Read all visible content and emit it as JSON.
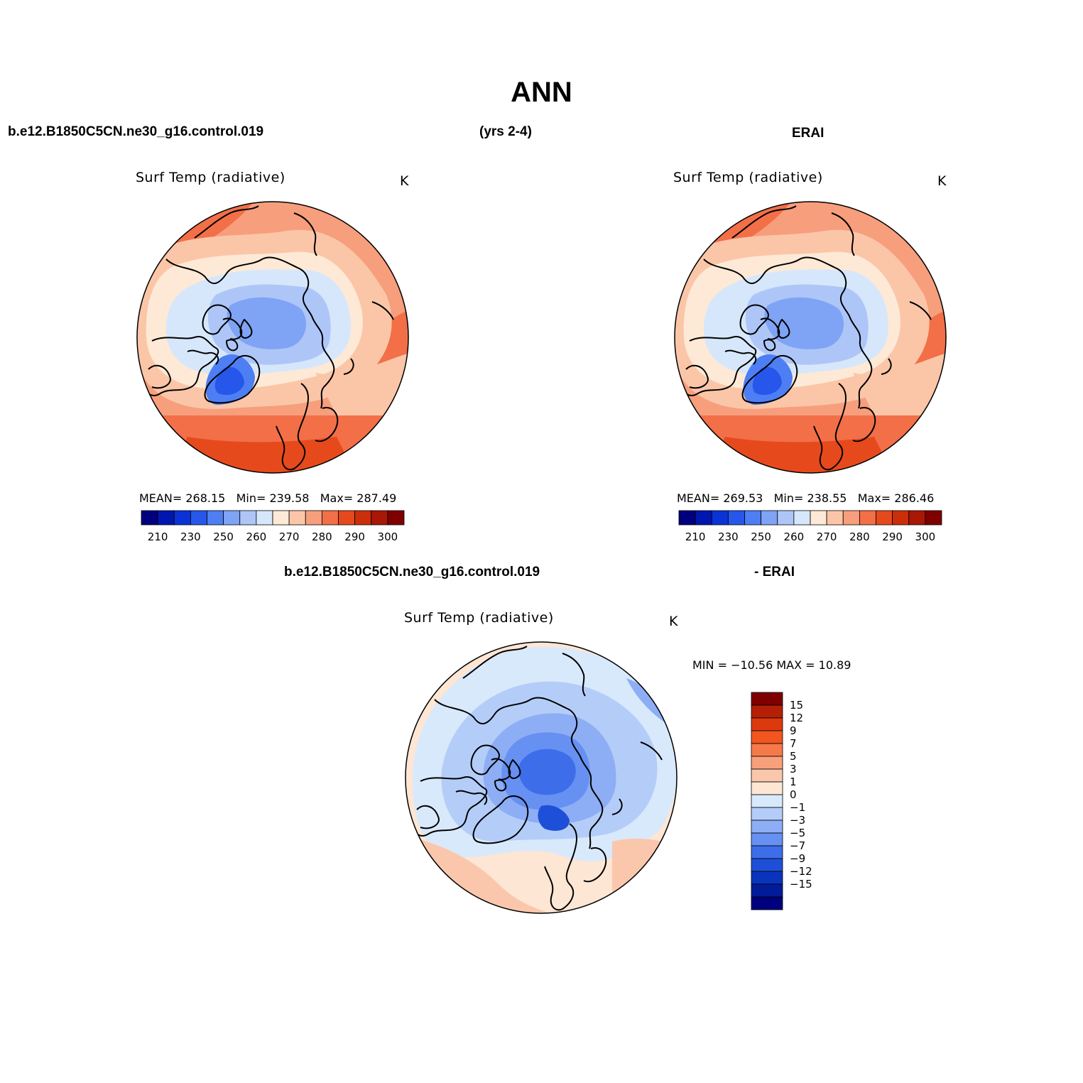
{
  "figure": {
    "title": "ANN",
    "header_left": "b.e12.B1850C5CN.ne30_g16.control.019",
    "header_center": "(yrs 2-4)",
    "header_right": "ERAI",
    "diff_header_left": "b.e12.B1850C5CN.ne30_g16.control.019",
    "diff_header_right": "- ERAI"
  },
  "panels": {
    "model": {
      "title": "Surf Temp (radiative)",
      "unit": "K",
      "mean_label": "MEAN=",
      "mean": "268.15",
      "min_label": "Min=",
      "min": "239.58",
      "max_label": "Max=",
      "max": "287.49"
    },
    "obs": {
      "title": "Surf Temp (radiative)",
      "unit": "K",
      "mean_label": "MEAN=",
      "mean": "269.53",
      "min_label": "Min=",
      "min": "238.55",
      "max_label": "Max=",
      "max": "286.46"
    },
    "diff": {
      "title": "Surf Temp (radiative)",
      "unit": "K",
      "minmax_text": "MIN = −10.56 MAX =   10.89"
    }
  },
  "colorbars": {
    "abs": {
      "colors": [
        "#00007f",
        "#0016b0",
        "#0a33d6",
        "#2756ea",
        "#4d7ef4",
        "#7fa3f5",
        "#aec6f7",
        "#d6e7fb",
        "#fde9d6",
        "#fbc6a8",
        "#f79e7c",
        "#f26f48",
        "#e64a1c",
        "#cc2e0a",
        "#a91706",
        "#7f0000"
      ],
      "labels": [
        "210",
        "230",
        "250",
        "260",
        "270",
        "280",
        "290",
        "300"
      ]
    },
    "diff": {
      "colors": [
        "#7f0000",
        "#b41f06",
        "#dc3a0e",
        "#f2561e",
        "#f6794a",
        "#f8a07c",
        "#fbc7ac",
        "#fde6d3",
        "#d8e9fc",
        "#b4cdf8",
        "#8daef5",
        "#6690f2",
        "#3d6de9",
        "#1e4fd9",
        "#0b34bd",
        "#021c99",
        "#00007f"
      ],
      "labels": [
        "15",
        "12",
        "9",
        "7",
        "5",
        "3",
        "1",
        "0",
        "−1",
        "−3",
        "−5",
        "−7",
        "−9",
        "−12",
        "−15"
      ]
    }
  }
}
